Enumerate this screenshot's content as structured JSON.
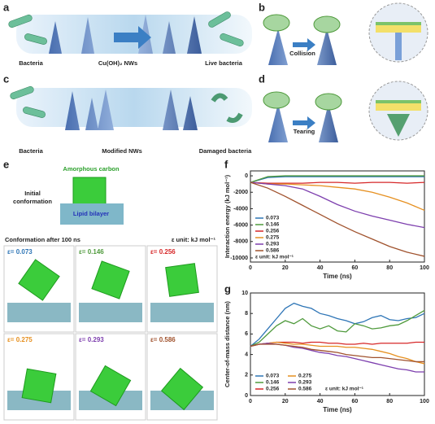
{
  "figure": {
    "panel_labels": [
      "a",
      "b",
      "c",
      "d",
      "e",
      "f",
      "g"
    ],
    "a": {
      "labels": [
        "Bacteria",
        "Cu(OH)₂ NWs",
        "Live bacteria"
      ]
    },
    "b": {
      "label": "Collision"
    },
    "c": {
      "labels": [
        "Bacteria",
        "Modified NWs",
        "Damaged bacteria"
      ]
    },
    "d": {
      "label": "Tearing"
    },
    "e": {
      "top_label": "Amorphous carbon",
      "initial": [
        "Initial",
        "conformation"
      ],
      "layer_label": "Lipid bilayer",
      "after": "Conformation after 100 ns",
      "unit": "ε unit: kJ mol⁻¹",
      "cells": [
        {
          "label": "ε= 0.073",
          "color": "#2e75b6"
        },
        {
          "label": "ε= 0.146",
          "color": "#4f9a3c"
        },
        {
          "label": "ε= 0.256",
          "color": "#d62728"
        },
        {
          "label": "ε= 0.275",
          "color": "#e69020"
        },
        {
          "label": "ε= 0.293",
          "color": "#7d3fae"
        },
        {
          "label": "ε= 0.586",
          "color": "#a0522d"
        }
      ]
    }
  },
  "chart_data": [
    {
      "type": "line",
      "x_label": "Time (ns)",
      "y_label": "Interaction energy (kJ mol⁻¹)",
      "annotation": "ε unit: kJ mol⁻¹",
      "x": [
        0,
        10,
        20,
        30,
        40,
        50,
        60,
        70,
        80,
        90,
        100
      ],
      "xlim": [
        0,
        100
      ],
      "xticks": [
        0,
        20,
        40,
        60,
        80,
        100
      ],
      "ylim": [
        -10500,
        600
      ],
      "yticks": [
        0,
        -2000,
        -4000,
        -6000,
        -8000,
        -10000
      ],
      "series": [
        {
          "name": "0.073",
          "color": "#2e75b6",
          "values": [
            -800,
            -200,
            -100,
            -100,
            -100,
            -100,
            -100,
            -100,
            -100,
            -100,
            -100
          ]
        },
        {
          "name": "0.146",
          "color": "#4f9a3c",
          "values": [
            -800,
            -100,
            0,
            0,
            0,
            0,
            0,
            0,
            0,
            0,
            0
          ]
        },
        {
          "name": "0.256",
          "color": "#d62728",
          "values": [
            -800,
            -900,
            -900,
            -900,
            -800,
            -800,
            -900,
            -800,
            -800,
            -900,
            -800
          ]
        },
        {
          "name": "0.275",
          "color": "#e69020",
          "values": [
            -800,
            -1000,
            -1000,
            -1100,
            -1200,
            -1400,
            -1600,
            -2000,
            -2600,
            -3300,
            -4200
          ]
        },
        {
          "name": "0.293",
          "color": "#7d3fae",
          "values": [
            -800,
            -1000,
            -1200,
            -1600,
            -2500,
            -3500,
            -4300,
            -4900,
            -5400,
            -5900,
            -6300
          ]
        },
        {
          "name": "0.586",
          "color": "#a0522d",
          "values": [
            -800,
            -1500,
            -2500,
            -3600,
            -4700,
            -5800,
            -6800,
            -7700,
            -8600,
            -9300,
            -9800
          ]
        }
      ]
    },
    {
      "type": "line",
      "x_label": "Time (ns)",
      "y_label": "Center-of-mass distance (nm)",
      "annotation": "ε unit: kJ mol⁻¹",
      "x": [
        0,
        5,
        10,
        15,
        20,
        25,
        30,
        35,
        40,
        45,
        50,
        55,
        60,
        65,
        70,
        75,
        80,
        85,
        90,
        95,
        100
      ],
      "xlim": [
        0,
        100
      ],
      "xticks": [
        0,
        20,
        40,
        60,
        80,
        100
      ],
      "ylim": [
        0,
        10
      ],
      "yticks": [
        0,
        2,
        4,
        6,
        8,
        10
      ],
      "series": [
        {
          "name": "0.073",
          "color": "#2e75b6",
          "values": [
            4.8,
            5.5,
            6.5,
            7.5,
            8.5,
            9.0,
            8.7,
            8.5,
            8.0,
            7.8,
            7.5,
            7.3,
            7.0,
            7.2,
            7.6,
            7.8,
            7.4,
            7.3,
            7.5,
            7.6,
            8.0
          ]
        },
        {
          "name": "0.146",
          "color": "#4f9a3c",
          "values": [
            4.8,
            5.2,
            6.0,
            6.8,
            7.3,
            7.0,
            7.5,
            6.8,
            6.5,
            6.8,
            6.3,
            6.2,
            7.0,
            6.8,
            6.5,
            6.6,
            6.8,
            6.9,
            7.3,
            7.8,
            8.3
          ]
        },
        {
          "name": "0.256",
          "color": "#d62728",
          "values": [
            4.8,
            5.0,
            5.1,
            5.2,
            5.2,
            5.2,
            5.1,
            5.2,
            5.2,
            5.1,
            5.1,
            5.0,
            5.0,
            5.1,
            5.0,
            5.1,
            5.1,
            5.1,
            5.1,
            5.2,
            5.2
          ]
        },
        {
          "name": "0.275",
          "color": "#e69020",
          "values": [
            4.8,
            5.0,
            5.1,
            5.2,
            5.1,
            5.0,
            5.0,
            4.9,
            4.8,
            4.8,
            4.8,
            4.7,
            4.7,
            4.6,
            4.5,
            4.3,
            4.1,
            3.8,
            3.6,
            3.3,
            3.1
          ]
        },
        {
          "name": "0.293",
          "color": "#7d3fae",
          "values": [
            4.8,
            5.0,
            5.1,
            5.0,
            4.9,
            4.7,
            4.6,
            4.4,
            4.2,
            4.1,
            3.9,
            3.8,
            3.6,
            3.4,
            3.2,
            3.0,
            2.8,
            2.6,
            2.5,
            2.3,
            2.3
          ]
        },
        {
          "name": "0.586",
          "color": "#a0522d",
          "values": [
            4.8,
            5.0,
            5.0,
            5.0,
            4.9,
            4.8,
            4.7,
            4.5,
            4.4,
            4.3,
            4.2,
            4.0,
            3.9,
            3.8,
            3.7,
            3.7,
            3.6,
            3.5,
            3.4,
            3.3,
            3.3
          ]
        }
      ]
    }
  ]
}
